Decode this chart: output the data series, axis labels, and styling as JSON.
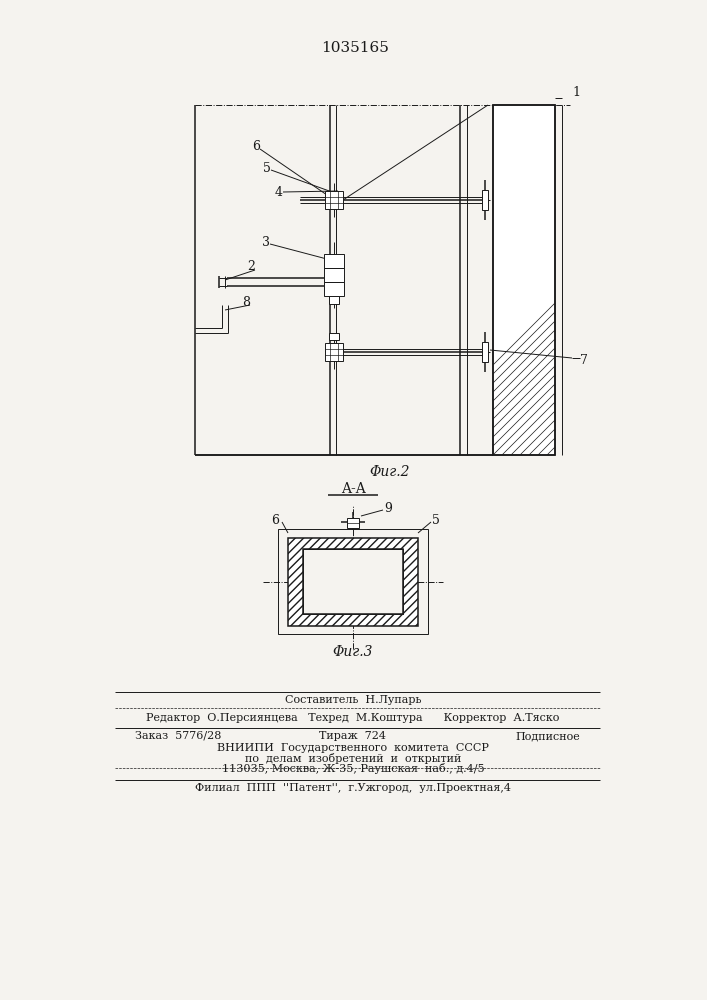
{
  "patent_number": "1035165",
  "fig2_label": "Φиг.2",
  "fig3_label": "Φиг.3",
  "section_label": "A-A",
  "bg_color": "#f5f3ef",
  "line_color": "#1a1a1a",
  "footer_line0": "Составитель  Н.Лупарь",
  "footer_line1": "Редактор  О.Персиянцева   Техред  М.Коштура      Корректор  А.Тяско",
  "footer_line2a": "Заказ  5776/28",
  "footer_line2b": "Тираж  724",
  "footer_line2c": "Подписное",
  "footer_line3": "ВНИИПИ  Государственного  комитета  СССР",
  "footer_line4": "по  делам  изобретений  и  открытий",
  "footer_line5": "113035, Москва, Ж-35, Раушская  наб., д.4/5",
  "footer_line6": "Филиал  ППП  ''Патент'',  г.Ужгород,  ул.Проектная,4"
}
